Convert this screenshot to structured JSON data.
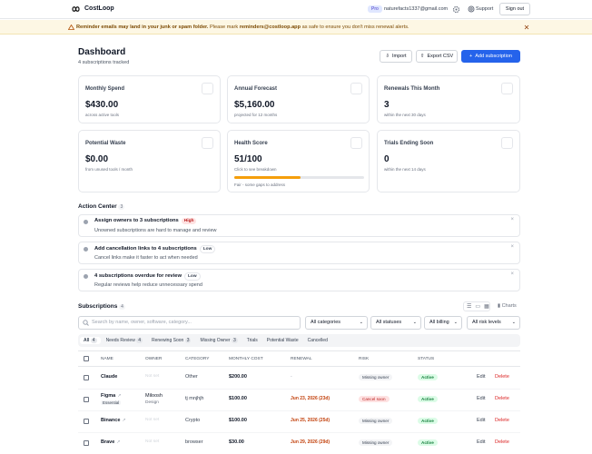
{
  "nav": {
    "brand": "CostLoop",
    "plan": "Pro",
    "email": "naturefacts1337@gmail.com",
    "support": "Support",
    "sign_out": "Sign out"
  },
  "banner": {
    "bold": "Reminder emails may land in your junk or spam folder.",
    "text_1": "Please mark",
    "email": "reminders@costloop.app",
    "text_2": "as safe to ensure you don't miss renewal alerts."
  },
  "header": {
    "title": "Dashboard",
    "subtitle": "4 subscriptions tracked",
    "buttons": [
      "Import",
      "Export CSV",
      "Add subscription"
    ]
  },
  "cards": [
    {
      "label": "Monthly Spend",
      "value": "$430.00",
      "note": "across active tools"
    },
    {
      "label": "Annual Forecast",
      "value": "$5,160.00",
      "note": "projected for 12 months"
    },
    {
      "label": "Renewals This Month",
      "value": "3",
      "note": "within the next 30 days"
    },
    {
      "label": "Potential Waste",
      "value": "$0.00",
      "note": "from unused tools / month"
    },
    {
      "label": "Health Score",
      "value": "51/100",
      "note": "Click to see breakdown",
      "progress": 51,
      "status": "Fair - some gaps to address"
    },
    {
      "label": "Trials Ending Soon",
      "value": "0",
      "note": "within the next 14 days"
    }
  ],
  "action_center": {
    "title": "Action Center",
    "count": 3,
    "items": [
      {
        "title": "Assign owners to 3 subscriptions",
        "badge": "High",
        "description": "Unowned subscriptions are hard to manage and review"
      },
      {
        "title": "Add cancellation links to 4 subscriptions",
        "badge": "Low",
        "description": "Cancel links make it faster to act when needed"
      },
      {
        "title": "4 subscriptions overdue for review",
        "badge": "Low",
        "description": "Regular reviews help reduce unnecessary spend"
      }
    ]
  },
  "subscriptions": {
    "title": "Subscriptions",
    "count": 4,
    "charts": "Charts",
    "search_placeholder": "Search by name, owner, software, category...",
    "filters": [
      "All categories",
      "All statuses",
      "All billing",
      "All risk levels"
    ],
    "tabs": [
      {
        "label": "All",
        "count": 4
      },
      {
        "label": "Needs Review",
        "count": 4
      },
      {
        "label": "Renewing Soon",
        "count": 3
      },
      {
        "label": "Missing Owner",
        "count": 3
      },
      {
        "label": "Trials"
      },
      {
        "label": "Potential Waste"
      },
      {
        "label": "Cancelled"
      }
    ],
    "columns": [
      "NAME",
      "OWNER",
      "CATEGORY",
      "MONTHLY COST",
      "RENEWAL",
      "RISK",
      "STATUS"
    ],
    "rows": [
      {
        "name": "Claude",
        "owner": "Not set",
        "category": "Other",
        "cost": "$200.00",
        "renewal": "-",
        "risk": "Missing owner",
        "status": "Active"
      },
      {
        "name": "Figma",
        "tag": "Essential",
        "owner": "Miloosh",
        "team": "Design",
        "category": "tj mnjhjh",
        "cost": "$100.00",
        "renewal": "Jun 23, 2026 (23d)",
        "risk": "Cancel soon",
        "status": "Active"
      },
      {
        "name": "Binance",
        "owner": "Not set",
        "category": "Crypto",
        "cost": "$100.00",
        "renewal": "Jun 25, 2026 (25d)",
        "risk": "Missing owner",
        "status": "Active"
      },
      {
        "name": "Brave",
        "owner": "Not set",
        "category": "browser",
        "cost": "$30.00",
        "renewal": "Jun 29, 2026 (29d)",
        "risk": "Missing owner",
        "status": "Active"
      }
    ],
    "actions": [
      "Edit",
      "Delete"
    ]
  }
}
